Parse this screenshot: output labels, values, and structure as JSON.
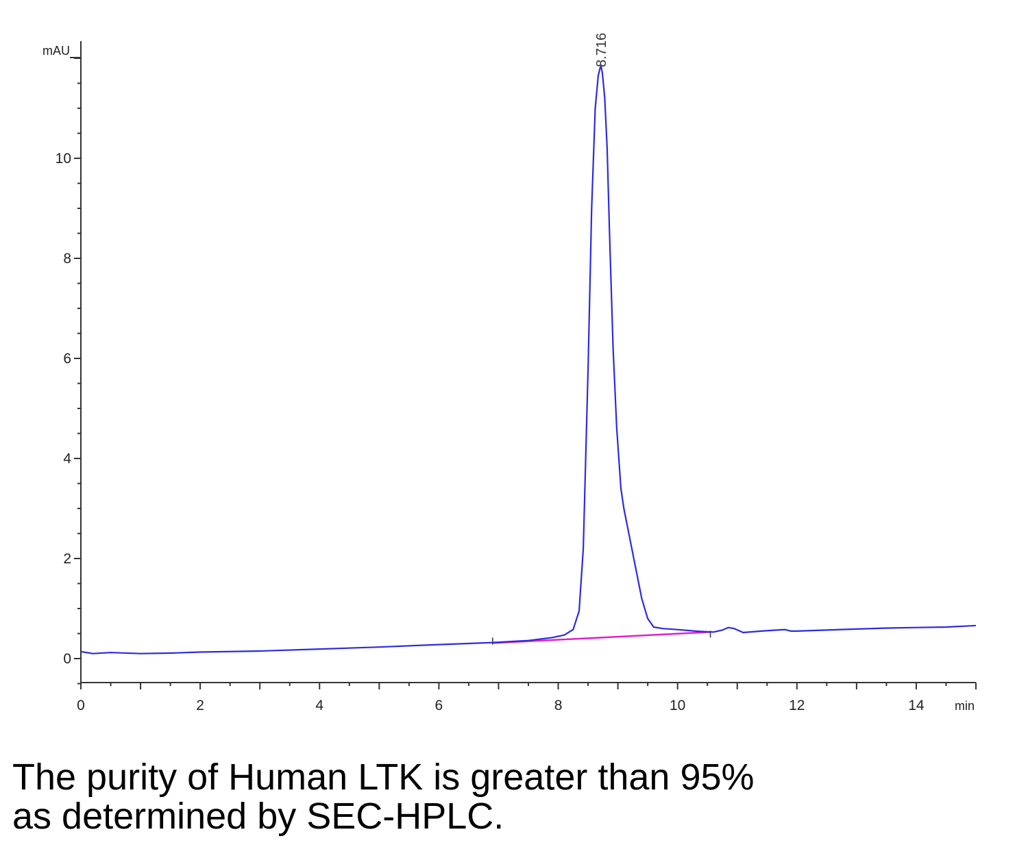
{
  "chart_data": {
    "type": "line",
    "title": "",
    "xlabel": "",
    "ylabel": "",
    "x_unit": "min",
    "y_unit": "mAU",
    "xlim": [
      0,
      15
    ],
    "ylim": [
      -0.5,
      12.0
    ],
    "x_ticks": [
      0,
      2,
      4,
      6,
      8,
      10,
      12,
      14
    ],
    "y_ticks": [
      0,
      2,
      4,
      6,
      8,
      10
    ],
    "grid": false,
    "legend": "none",
    "series": [
      {
        "color": "#2a2ae0",
        "x": [
          0,
          0.2,
          0.5,
          1.0,
          1.5,
          2.0,
          3.0,
          4.0,
          5.0,
          6.0,
          6.9,
          7.5,
          7.9,
          8.1,
          8.25,
          8.35,
          8.42,
          8.5,
          8.56,
          8.62,
          8.67,
          8.7,
          8.716,
          8.74,
          8.78,
          8.82,
          8.86,
          8.92,
          8.98,
          9.05,
          9.1,
          9.2,
          9.3,
          9.4,
          9.5,
          9.6,
          9.75,
          10.0,
          10.3,
          10.6,
          10.75,
          10.85,
          10.95,
          11.1,
          11.4,
          11.8,
          11.9,
          12.0,
          12.5,
          13.0,
          13.5,
          14.0,
          14.5,
          15.0
        ],
        "y": [
          0.14,
          0.1,
          0.12,
          0.1,
          0.11,
          0.13,
          0.15,
          0.19,
          0.23,
          0.28,
          0.32,
          0.36,
          0.42,
          0.47,
          0.58,
          0.95,
          2.2,
          5.8,
          9.0,
          11.0,
          11.65,
          11.8,
          11.85,
          11.7,
          11.2,
          10.2,
          8.5,
          6.2,
          4.6,
          3.4,
          3.0,
          2.4,
          1.8,
          1.2,
          0.8,
          0.63,
          0.6,
          0.58,
          0.55,
          0.53,
          0.57,
          0.62,
          0.6,
          0.52,
          0.55,
          0.58,
          0.55,
          0.55,
          0.57,
          0.59,
          0.61,
          0.62,
          0.63,
          0.66
        ]
      }
    ],
    "baseline": {
      "color": "#e020c8",
      "x": [
        6.9,
        10.55
      ],
      "y": [
        0.31,
        0.53
      ]
    },
    "peak_label": {
      "text": "8.716",
      "x": 8.716,
      "y": 11.85
    }
  },
  "caption": {
    "line1": "The purity of Human LTK is greater than 95%",
    "line2": "as determined by SEC-HPLC."
  }
}
